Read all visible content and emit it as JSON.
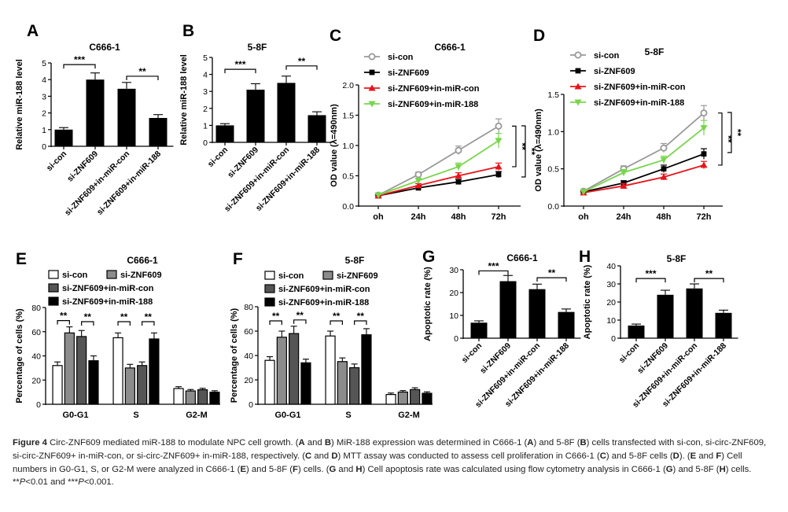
{
  "figure_label": "Figure 4",
  "caption": {
    "title": "Circ-ZNF609 mediated miR-188 to modulate NPC cell growth.",
    "parts": [
      {
        "t": " (",
        "b": false
      },
      {
        "t": "A",
        "b": true
      },
      {
        "t": " and ",
        "b": false
      },
      {
        "t": "B",
        "b": true
      },
      {
        "t": ") MiR-188 expression was determined in C666-1 (",
        "b": false
      },
      {
        "t": "A",
        "b": true
      },
      {
        "t": ") and 5-8F (",
        "b": false
      },
      {
        "t": "B",
        "b": true
      },
      {
        "t": ") cells transfected with si-con, si-circ-ZNF609, si-circ-ZNF609+ in-miR-con, or si-circ-ZNF609+ in-miR-188, respectively. (",
        "b": false
      },
      {
        "t": "C",
        "b": true
      },
      {
        "t": " and ",
        "b": false
      },
      {
        "t": "D",
        "b": true
      },
      {
        "t": ") MTT assay was conducted to assess cell proliferation in C666-1 (",
        "b": false
      },
      {
        "t": "C",
        "b": true
      },
      {
        "t": ") and 5-8F cells (",
        "b": false
      },
      {
        "t": "D",
        "b": true
      },
      {
        "t": "). (",
        "b": false
      },
      {
        "t": "E",
        "b": true
      },
      {
        "t": " and ",
        "b": false
      },
      {
        "t": "F",
        "b": true
      },
      {
        "t": ") Cell numbers in G0-G1, S, or G2-M were analyzed in C666-1 (",
        "b": false
      },
      {
        "t": "E",
        "b": true
      },
      {
        "t": ") and 5-8F (",
        "b": false
      },
      {
        "t": "F",
        "b": true
      },
      {
        "t": ") cells. (",
        "b": false
      },
      {
        "t": "G",
        "b": true
      },
      {
        "t": " and ",
        "b": false
      },
      {
        "t": "H",
        "b": true
      },
      {
        "t": ") Cell apoptosis rate was calculated using flow cytometry analysis in C666-1 (",
        "b": false
      },
      {
        "t": "G",
        "b": true
      },
      {
        "t": ") and 5-8F (",
        "b": false
      },
      {
        "t": "H",
        "b": true
      },
      {
        "t": ") cells. ",
        "b": false
      },
      {
        "t": "**P",
        "b": false,
        "p": true
      },
      {
        "t": "<0.01 and ",
        "b": false
      },
      {
        "t": "***P",
        "b": false,
        "p": true
      },
      {
        "t": "<0.001.",
        "b": false
      }
    ]
  },
  "colors": {
    "si_con": "#999999",
    "si_znf": "#000000",
    "in_miR_con": "#e8141b",
    "in_miR_188": "#77d64a",
    "bar_fill": "#000000",
    "bar_gray": "#8c8c8c",
    "bar_dark": "#555555"
  },
  "chart_data": [
    {
      "panel": "A",
      "type": "bar",
      "title": "C666-1",
      "ylabel": "Relative miR-188 level",
      "categories": [
        "si-con",
        "si-ZNF609",
        "si-ZNF609+in-miR-con",
        "si-ZNF609+in-miR-188"
      ],
      "values": [
        1.0,
        4.0,
        3.45,
        1.7
      ],
      "errors": [
        0.12,
        0.4,
        0.38,
        0.2
      ],
      "ylim": [
        0,
        5
      ],
      "yticks": [
        0,
        1,
        2,
        3,
        4,
        5
      ],
      "brackets": [
        {
          "from": 0,
          "to": 1,
          "label": "***",
          "level": 4.9
        },
        {
          "from": 2,
          "to": 3,
          "label": "**",
          "level": 4.2
        }
      ]
    },
    {
      "panel": "B",
      "type": "bar",
      "title": "5-8F",
      "ylabel": "Relative miR-188 level",
      "categories": [
        "si-con",
        "si-ZNF609",
        "si-ZNF609+in-miR-con",
        "si-ZNF609+in-miR-188"
      ],
      "values": [
        1.0,
        3.1,
        3.5,
        1.6
      ],
      "errors": [
        0.1,
        0.35,
        0.4,
        0.2
      ],
      "ylim": [
        0,
        5
      ],
      "yticks": [
        0,
        1,
        2,
        3,
        4,
        5
      ],
      "brackets": [
        {
          "from": 0,
          "to": 1,
          "label": "***",
          "level": 4.3
        },
        {
          "from": 2,
          "to": 3,
          "label": "**",
          "level": 4.5
        }
      ]
    },
    {
      "panel": "C",
      "type": "line",
      "title": "C666-1",
      "ylabel": "OD value (λ=490nm)",
      "x": [
        "oh",
        "24h",
        "48h",
        "72h"
      ],
      "ylim": [
        0,
        2.0
      ],
      "yticks": [
        0.0,
        0.5,
        1.0,
        1.5,
        2.0
      ],
      "series": [
        {
          "name": "si-con",
          "values": [
            0.18,
            0.52,
            0.92,
            1.32
          ],
          "errors": [
            0.02,
            0.04,
            0.07,
            0.12
          ],
          "marker": "circle",
          "color": "#999999"
        },
        {
          "name": "si-ZNF609",
          "values": [
            0.17,
            0.3,
            0.4,
            0.52
          ],
          "errors": [
            0.02,
            0.03,
            0.04,
            0.05
          ],
          "marker": "square",
          "color": "#000000"
        },
        {
          "name": "si-ZNF609+in-miR-con",
          "values": [
            0.17,
            0.34,
            0.5,
            0.65
          ],
          "errors": [
            0.02,
            0.03,
            0.05,
            0.06
          ],
          "marker": "triangle",
          "color": "#e8141b"
        },
        {
          "name": "si-ZNF609+in-miR-188",
          "values": [
            0.18,
            0.42,
            0.65,
            1.08
          ],
          "errors": [
            0.02,
            0.04,
            0.06,
            0.12
          ],
          "marker": "tridown",
          "color": "#77d64a"
        }
      ],
      "sig": [
        "**",
        "**"
      ]
    },
    {
      "panel": "D",
      "type": "line",
      "title": "5-8F",
      "ylabel": "OD value (λ=490nm)",
      "x": [
        "oh",
        "24h",
        "48h",
        "72h"
      ],
      "ylim": [
        0,
        1.5
      ],
      "yticks": [
        0.0,
        0.5,
        1.0,
        1.5
      ],
      "series": [
        {
          "name": "si-con",
          "values": [
            0.2,
            0.5,
            0.78,
            1.25
          ],
          "errors": [
            0.02,
            0.04,
            0.06,
            0.1
          ],
          "marker": "circle",
          "color": "#999999"
        },
        {
          "name": "si-ZNF609",
          "values": [
            0.19,
            0.31,
            0.5,
            0.7
          ],
          "errors": [
            0.02,
            0.03,
            0.05,
            0.07
          ],
          "marker": "square",
          "color": "#000000"
        },
        {
          "name": "si-ZNF609+in-miR-con",
          "values": [
            0.18,
            0.27,
            0.39,
            0.55
          ],
          "errors": [
            0.02,
            0.03,
            0.04,
            0.05
          ],
          "marker": "triangle",
          "color": "#e8141b"
        },
        {
          "name": "si-ZNF609+in-miR-188",
          "values": [
            0.19,
            0.45,
            0.62,
            1.05
          ],
          "errors": [
            0.02,
            0.04,
            0.05,
            0.1
          ],
          "marker": "tridown",
          "color": "#77d64a"
        }
      ],
      "sig": [
        "**",
        "**"
      ]
    },
    {
      "panel": "E",
      "type": "bar",
      "title": "C666-1",
      "ylabel": "Percentage of cells (%)",
      "categories": [
        "G0-G1",
        "S",
        "G2-M"
      ],
      "ylim": [
        0,
        80
      ],
      "yticks": [
        0,
        20,
        40,
        60,
        80
      ],
      "series": [
        {
          "name": "si-con",
          "values": [
            32,
            55,
            13
          ],
          "errors": [
            3,
            4,
            1.5
          ],
          "style": "white"
        },
        {
          "name": "si-ZNF609",
          "values": [
            59,
            30,
            11
          ],
          "errors": [
            5,
            3,
            1.2
          ],
          "style": "gray"
        },
        {
          "name": "si-ZNF609+in-miR-con",
          "values": [
            56,
            32,
            12
          ],
          "errors": [
            5,
            3,
            1.2
          ],
          "style": "dark"
        },
        {
          "name": "si-ZNF609+in-miR-188",
          "values": [
            36,
            54,
            10
          ],
          "errors": [
            4,
            5,
            1.2
          ],
          "style": "black"
        }
      ],
      "sig": [
        "**",
        "**",
        "**",
        "**"
      ]
    },
    {
      "panel": "F",
      "type": "bar",
      "title": "5-8F",
      "ylabel": "Percentage of cells (%)",
      "categories": [
        "G0-G1",
        "S",
        "G2-M"
      ],
      "ylim": [
        0,
        80
      ],
      "yticks": [
        0,
        20,
        40,
        60,
        80
      ],
      "series": [
        {
          "name": "si-con",
          "values": [
            36,
            56,
            8
          ],
          "errors": [
            3,
            4,
            1.2
          ],
          "style": "white"
        },
        {
          "name": "si-ZNF609",
          "values": [
            55,
            35,
            10
          ],
          "errors": [
            5,
            3,
            1.2
          ],
          "style": "gray"
        },
        {
          "name": "si-ZNF609+in-miR-con",
          "values": [
            58,
            30,
            12
          ],
          "errors": [
            6,
            3,
            1.5
          ],
          "style": "dark"
        },
        {
          "name": "si-ZNF609+in-miR-188",
          "values": [
            34,
            57,
            9
          ],
          "errors": [
            3,
            5,
            1.2
          ],
          "style": "black"
        }
      ],
      "sig": [
        "**",
        "**",
        "**",
        "**"
      ]
    },
    {
      "panel": "G",
      "type": "bar",
      "title": "C666-1",
      "ylabel": "Apoptotic rate (%)",
      "categories": [
        "si-con",
        "si-ZNF609",
        "si-ZNF609+in-miR-con",
        "si-ZNF609+in-miR-188"
      ],
      "values": [
        6.8,
        25.0,
        21.5,
        11.5
      ],
      "errors": [
        0.8,
        2.5,
        2.2,
        1.3
      ],
      "ylim": [
        0,
        30
      ],
      "yticks": [
        0,
        10,
        20,
        30
      ],
      "brackets": [
        {
          "from": 0,
          "to": 1,
          "label": "***",
          "level": 29.5
        },
        {
          "from": 2,
          "to": 3,
          "label": "**",
          "level": 26.5
        }
      ]
    },
    {
      "panel": "H",
      "type": "bar",
      "title": "5-8F",
      "ylabel": "Apoptotic rate (%)",
      "categories": [
        "si-con",
        "si-ZNF609",
        "si-ZNF609+in-miR-con",
        "si-ZNF609+in-miR-188"
      ],
      "values": [
        7.0,
        24.0,
        27.5,
        14.0
      ],
      "errors": [
        0.8,
        2.5,
        2.5,
        1.5
      ],
      "ylim": [
        0,
        40
      ],
      "yticks": [
        0,
        10,
        20,
        30,
        40
      ],
      "brackets": [
        {
          "from": 0,
          "to": 1,
          "label": "***",
          "level": 33
        },
        {
          "from": 2,
          "to": 3,
          "label": "**",
          "level": 33
        }
      ]
    }
  ]
}
